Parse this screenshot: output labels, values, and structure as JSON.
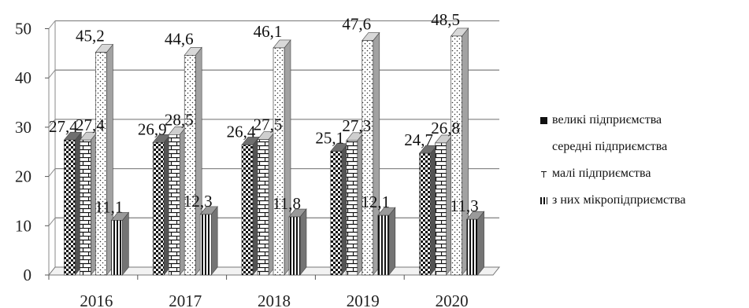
{
  "chart_data": {
    "type": "bar",
    "categories": [
      "2016",
      "2017",
      "2018",
      "2019",
      "2020"
    ],
    "series": [
      {
        "name": "великі підприємства",
        "values": [
          27.4,
          26.9,
          26.4,
          25.1,
          24.7
        ],
        "labels": [
          "27,4",
          "26,9",
          "26,4",
          "25,1",
          "24,7"
        ],
        "pattern": "checker"
      },
      {
        "name": "середні підприємства",
        "values": [
          27.4,
          28.5,
          27.5,
          27.3,
          26.8
        ],
        "labels": [
          "27,4",
          "28,5",
          "27,5",
          "27,3",
          "26,8"
        ],
        "pattern": "brick"
      },
      {
        "name": "малі підприємства",
        "values": [
          45.2,
          44.6,
          46.1,
          47.6,
          48.5
        ],
        "labels": [
          "45,2",
          "44,6",
          "46,1",
          "47,6",
          "48,5"
        ],
        "pattern": "dots"
      },
      {
        "name": "з них мікропідприємства",
        "values": [
          11.1,
          12.3,
          11.8,
          12.1,
          11.3
        ],
        "labels": [
          "11,1",
          "12,3",
          "11,8",
          "12,1",
          "11,3"
        ],
        "pattern": "vstripes"
      }
    ],
    "yticks": [
      "0",
      "10",
      "20",
      "30",
      "40",
      "50"
    ],
    "ylim": [
      0,
      50
    ],
    "grid": true,
    "legend": "right",
    "style": "3d-clustered-bar"
  }
}
